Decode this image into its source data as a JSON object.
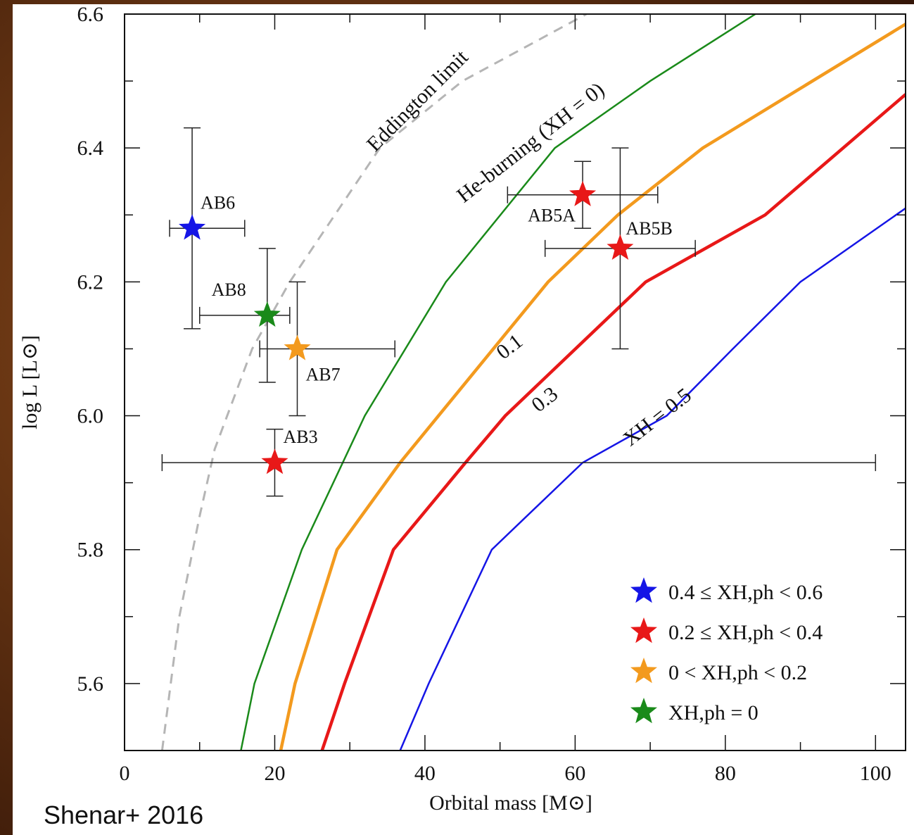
{
  "chart_data": {
    "type": "scatter",
    "x_label": "Orbital mass [M⊙]",
    "y_label": "log L [L⊙]",
    "source": "Shenar+ 2016",
    "xlim": [
      0,
      104
    ],
    "ylim": [
      5.5,
      6.6
    ],
    "xticks": [
      0,
      20,
      40,
      60,
      80,
      100
    ],
    "xminorticks": [
      10,
      30,
      50,
      70,
      90
    ],
    "yticks": [
      5.6,
      5.8,
      {
        "value": 6,
        "label": "6.0"
      },
      6.2,
      6.4,
      6.6
    ],
    "yminorticks": [
      5.7,
      5.9,
      6.1,
      6.3,
      6.5
    ],
    "legend_position": "lower right",
    "legend": [
      {
        "name": "0.4 ≤ XH,ph < 0.6",
        "color": "#1515e6"
      },
      {
        "name": "0.2 ≤ XH,ph < 0.4",
        "color": "#e81818"
      },
      {
        "name": "0 < XH,ph < 0.2",
        "color": "#f39a1e"
      },
      {
        "name": "XH,ph = 0",
        "color": "#1a8a1a"
      }
    ],
    "points": [
      {
        "label": "AB6",
        "x": 9,
        "y": 6.28,
        "x_err": [
          3,
          7
        ],
        "y_err": [
          0.15,
          0.15
        ],
        "color": "#1515e6"
      },
      {
        "label": "AB8",
        "x": 19,
        "y": 6.15,
        "x_err": [
          9,
          3
        ],
        "y_err": [
          0.1,
          0.1
        ],
        "color": "#1a8a1a"
      },
      {
        "label": "AB7",
        "x": 23,
        "y": 6.1,
        "x_err": [
          5,
          13
        ],
        "y_err": [
          0.1,
          0.1
        ],
        "color": "#f39a1e"
      },
      {
        "label": "AB3",
        "x": 20,
        "y": 5.93,
        "x_err": [
          15,
          80
        ],
        "y_err": [
          0.05,
          0.05
        ],
        "color": "#e81818"
      },
      {
        "label": "AB5A",
        "x": 61,
        "y": 6.33,
        "x_err": [
          10,
          10
        ],
        "y_err": [
          0.05,
          0.05
        ],
        "color": "#e81818"
      },
      {
        "label": "AB5B",
        "x": 66,
        "y": 6.25,
        "x_err": [
          10,
          10
        ],
        "y_err": [
          0.15,
          0.15
        ],
        "color": "#e81818"
      }
    ],
    "curves": [
      {
        "label": "Eddington limit",
        "color": "#b5b5b5",
        "dashed": true,
        "x": [
          5,
          7.3,
          10,
          12,
          17,
          22,
          34,
          45,
          61.5
        ],
        "y": [
          5.5,
          5.7,
          5.85,
          5.95,
          6.1,
          6.2,
          6.4,
          6.5,
          6.6
        ]
      },
      {
        "label": "He-burning (XH = 0)",
        "color": "#1a8a1a",
        "dashed": false,
        "x": [
          15.5,
          17.3,
          23.6,
          32,
          42.8,
          57.3,
          70,
          84
        ],
        "y": [
          5.5,
          5.6,
          5.8,
          6.0,
          6.2,
          6.4,
          6.5,
          6.6
        ]
      },
      {
        "label": "0.1",
        "color": "#f39a1e",
        "dashed": false,
        "x": [
          20.8,
          22.7,
          28.3,
          36.7,
          56.4,
          65.7,
          77,
          104
        ],
        "y": [
          5.5,
          5.6,
          5.8,
          5.93,
          6.2,
          6.3,
          6.4,
          6.585
        ]
      },
      {
        "label": "0.3",
        "color": "#e81818",
        "dashed": false,
        "x": [
          26.3,
          29.3,
          35.8,
          45.4,
          50.7,
          69.4,
          85.3,
          104
        ],
        "y": [
          5.5,
          5.6,
          5.8,
          5.93,
          6.0,
          6.2,
          6.3,
          6.48
        ]
      },
      {
        "label": "XH = 0.5",
        "color": "#1515e6",
        "dashed": false,
        "x": [
          36.7,
          40.5,
          48.9,
          61,
          72.2,
          81,
          90,
          104
        ],
        "y": [
          5.5,
          5.6,
          5.8,
          5.93,
          6.0,
          6.1,
          6.2,
          6.31
        ]
      }
    ]
  }
}
